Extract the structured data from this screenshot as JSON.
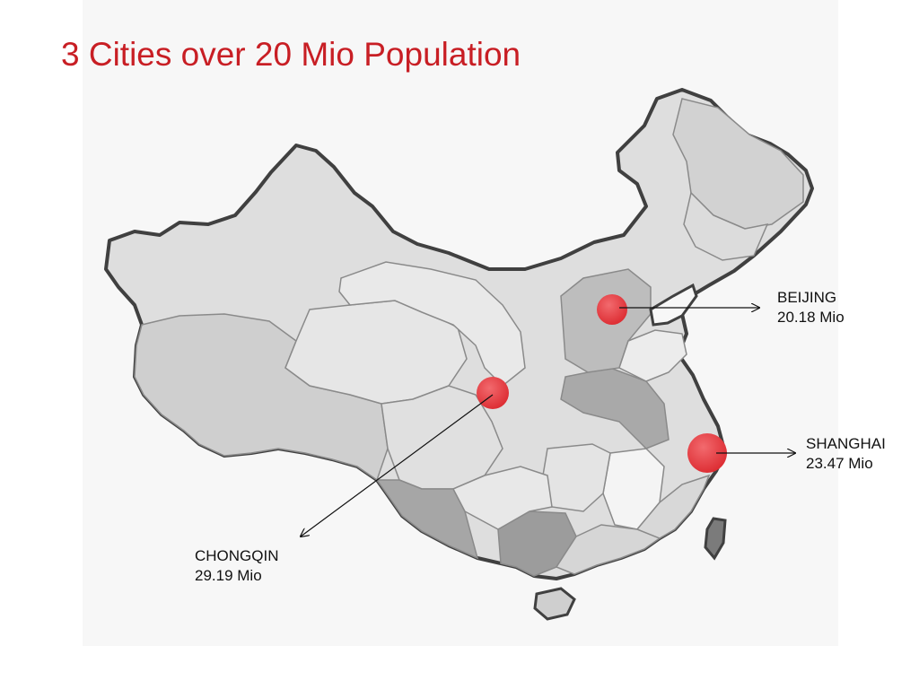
{
  "slide": {
    "title": "3 Cities over 20 Mio Population",
    "accent_color": "#c81e24",
    "marker_color": "#e53237"
  },
  "map": {
    "region": "China",
    "cities": [
      {
        "id": "beijing",
        "name": "BEIJING",
        "population": "20.18 Mio"
      },
      {
        "id": "shanghai",
        "name": "SHANGHAI",
        "population": "23.47 Mio"
      },
      {
        "id": "chongqin",
        "name": "CHONGQIN",
        "population": "29.19 Mio"
      }
    ]
  }
}
